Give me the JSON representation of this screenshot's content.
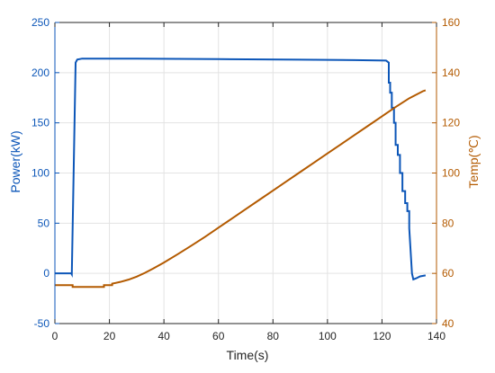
{
  "chart_data": {
    "type": "line",
    "title": "",
    "xlabel": "Time(s)",
    "ylabel_left": "Power(kW)",
    "ylabel_right": "Temp(℃)",
    "xlim": [
      0,
      140
    ],
    "ylim_left": [
      -50,
      250
    ],
    "ylim_right": [
      40,
      160
    ],
    "x_ticks": [
      0,
      20,
      40,
      60,
      80,
      100,
      120,
      140
    ],
    "y_ticks_left": [
      -50,
      0,
      50,
      100,
      150,
      200,
      250
    ],
    "y_ticks_right": [
      40,
      60,
      80,
      100,
      120,
      140,
      160
    ],
    "grid": true,
    "legend": "none",
    "colors": {
      "power": "#0c56b8",
      "temp": "#b35a00",
      "grid": "#e3e3e3",
      "axis": "#262626"
    },
    "series": [
      {
        "axis": "left",
        "points": [
          [
            0,
            0
          ],
          [
            6,
            0
          ],
          [
            6.2,
            -1
          ],
          [
            7.6,
            210
          ],
          [
            8.2,
            213
          ],
          [
            10,
            214
          ],
          [
            30,
            214
          ],
          [
            60,
            213.5
          ],
          [
            90,
            213
          ],
          [
            110,
            212.5
          ],
          [
            121.5,
            212
          ],
          [
            122.5,
            210
          ],
          [
            122.5,
            190
          ],
          [
            123,
            190
          ],
          [
            123,
            180
          ],
          [
            123.6,
            180
          ],
          [
            123.6,
            165
          ],
          [
            124.4,
            165
          ],
          [
            124.4,
            150
          ],
          [
            125,
            150
          ],
          [
            125,
            128
          ],
          [
            125.8,
            128
          ],
          [
            125.8,
            118
          ],
          [
            126.6,
            118
          ],
          [
            126.6,
            100
          ],
          [
            127.5,
            100
          ],
          [
            127.5,
            82
          ],
          [
            128.5,
            82
          ],
          [
            128.5,
            70
          ],
          [
            129.3,
            70
          ],
          [
            129.3,
            62
          ],
          [
            130,
            62
          ],
          [
            130,
            45
          ],
          [
            131,
            0
          ],
          [
            131.5,
            -6
          ],
          [
            132.5,
            -5
          ],
          [
            134,
            -3
          ],
          [
            136,
            -2
          ]
        ]
      },
      {
        "axis": "right",
        "points": [
          [
            0,
            55.3
          ],
          [
            6.5,
            55.3
          ],
          [
            6.5,
            54.6
          ],
          [
            18,
            54.6
          ],
          [
            18,
            55.3
          ],
          [
            21,
            55.3
          ],
          [
            21,
            55.9
          ],
          [
            24,
            56.6
          ],
          [
            27,
            57.5
          ],
          [
            30,
            58.7
          ],
          [
            33,
            60.2
          ],
          [
            36,
            61.9
          ],
          [
            40,
            64.3
          ],
          [
            45,
            67.6
          ],
          [
            50,
            71
          ],
          [
            55,
            74.5
          ],
          [
            60,
            78.2
          ],
          [
            65,
            81.9
          ],
          [
            70,
            85.6
          ],
          [
            75,
            89.3
          ],
          [
            80,
            93
          ],
          [
            85,
            96.7
          ],
          [
            90,
            100.4
          ],
          [
            95,
            104.1
          ],
          [
            100,
            107.8
          ],
          [
            105,
            111.5
          ],
          [
            110,
            115.2
          ],
          [
            115,
            118.9
          ],
          [
            120,
            122.6
          ],
          [
            125,
            126.3
          ],
          [
            130,
            129.8
          ],
          [
            135,
            132.6
          ],
          [
            136,
            133
          ]
        ]
      }
    ]
  }
}
